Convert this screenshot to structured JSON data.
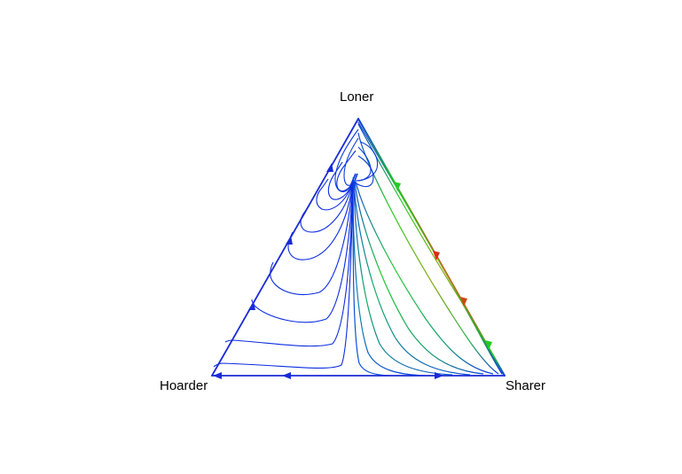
{
  "diagram": {
    "type": "ternary phase portrait (simplex flow)",
    "vertices": {
      "top": "Loner",
      "bottom_left": "Hoarder",
      "bottom_right": "Sharer"
    },
    "colors": {
      "edge": "#1a1ad6",
      "flow_slow": "#0a1ee0",
      "flow_medium": "#0a9a8a",
      "flow_fast_green": "#22cc22",
      "flow_fastest": "#e02a10"
    }
  }
}
